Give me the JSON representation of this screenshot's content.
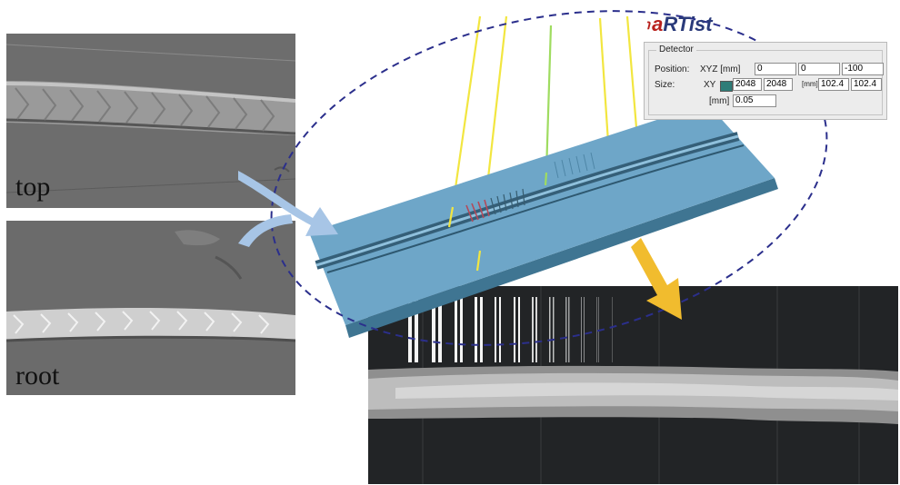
{
  "labels": {
    "top_scan": "top",
    "root_scan": "root"
  },
  "software": {
    "logo_mark": "℩",
    "logo_prefix": "a",
    "logo_rest": "RTist",
    "group_title": "Detector",
    "position_label": "Position:",
    "position_unit": "XYZ [mm]",
    "position_x": "0",
    "position_y": "0",
    "position_z": "-100",
    "size_label": "Size:",
    "size_unit": "XY",
    "size_x_px": "2048",
    "size_y_px": "2048",
    "mm_unit": "[mm]",
    "size_x_mm": "102.4",
    "size_y_mm": "102.4",
    "pixel_unit": "[mm]",
    "pixel_size": "0.05"
  },
  "colors": {
    "specimen": "#6ea6c8",
    "specimen_edge": "#3f7592",
    "ray_yellow": "#f2e640",
    "ray_green": "#9fdc60",
    "inflow_arrow": "#a7c5e6",
    "outflow_arrow": "#f1bc2e",
    "ellipse": "#2b2f8c",
    "radiograph_bg": "#222426",
    "scan_bg": "#6c6c6c"
  }
}
